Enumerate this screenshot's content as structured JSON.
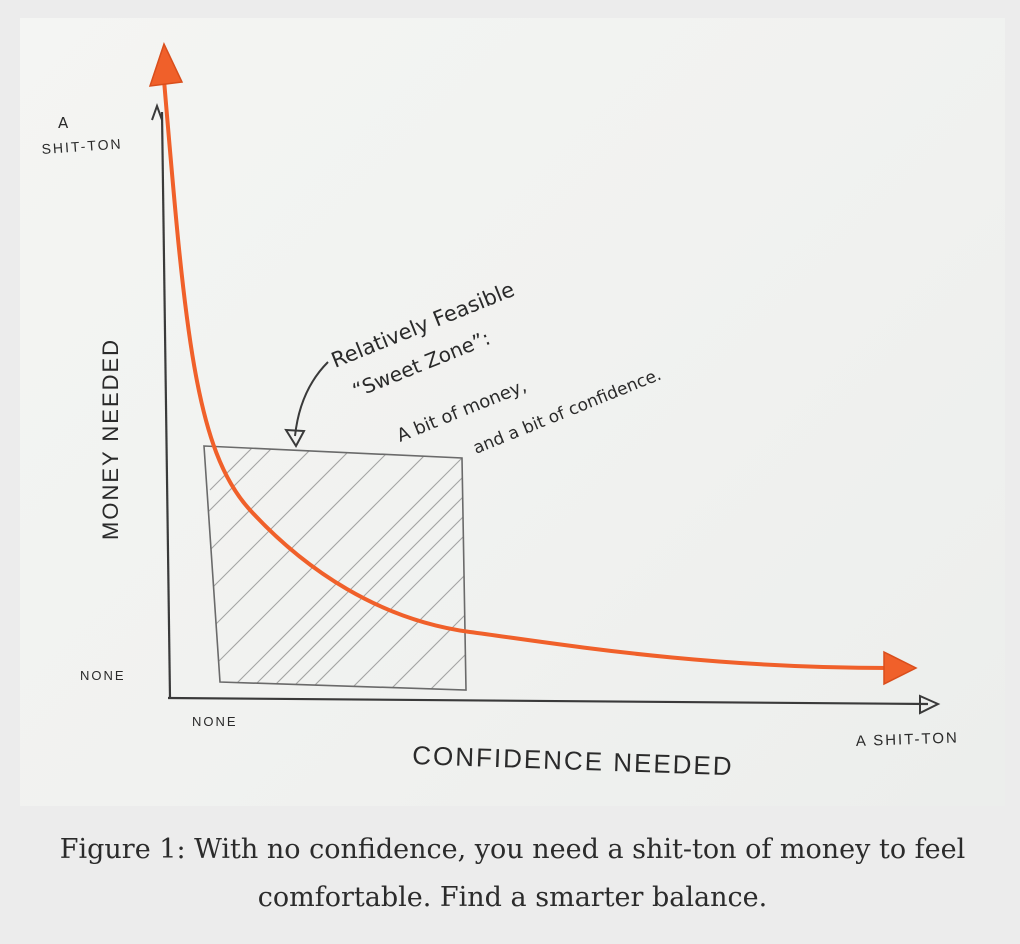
{
  "diagram": {
    "y_axis": {
      "label": "MONEY NEEDED",
      "top_tick_line1": "A",
      "top_tick_line2": "SHIT-TON",
      "bottom_tick": "NONE"
    },
    "x_axis": {
      "label": "CONFIDENCE NEEDED",
      "left_tick": "NONE",
      "right_tick": "A SHIT-TON"
    },
    "annotation": {
      "line1": "Relatively Feasible",
      "line2": "“Sweet Zone”:",
      "line3": "A bit of money,",
      "line4": "and a bit of confidence."
    },
    "colors": {
      "curve": "#f0602a",
      "pencil": "#3a3a3a",
      "hatch": "#8a8a8a"
    }
  },
  "caption": {
    "line1": "Figure 1: With no confidence, you need a shit-ton of money to feel",
    "line2": "comfortable. Find a smarter balance."
  }
}
